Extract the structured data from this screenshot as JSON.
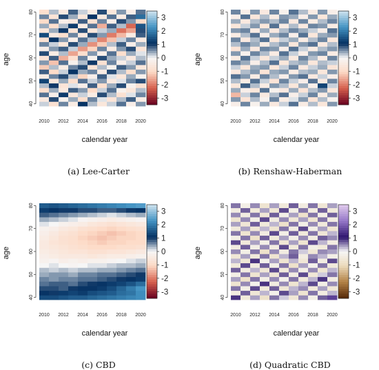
{
  "chart_data": [
    {
      "type": "heatmap",
      "caption": "(a) Lee-Carter",
      "xlabel": "calendar year",
      "ylabel": "age",
      "x": [
        2010,
        2011,
        2012,
        2013,
        2014,
        2015,
        2016,
        2017,
        2018,
        2019,
        2020
      ],
      "y": [
        40,
        42,
        44,
        46,
        48,
        50,
        52,
        54,
        56,
        58,
        60,
        62,
        64,
        66,
        68,
        70,
        72,
        74,
        76,
        78,
        80
      ],
      "x_ticks": [
        2010,
        2012,
        2014,
        2016,
        2018,
        2020
      ],
      "y_ticks": [
        40,
        50,
        60,
        70,
        80
      ],
      "colorbar_ticks": [
        3,
        2,
        1,
        0,
        -1,
        -2,
        -3
      ],
      "zlim": [
        -3.5,
        3.5
      ],
      "palette": "red-white-blue",
      "values": [
        [
          0.2,
          -0.8,
          0.6,
          -0.4,
          1.1,
          0.3,
          -0.6,
          0.2,
          0.7,
          -0.3,
          0.5
        ],
        [
          -0.5,
          0.9,
          -0.2,
          0.4,
          -0.9,
          0.6,
          0.1,
          -0.7,
          0.3,
          0.8,
          -0.4
        ],
        [
          0.7,
          -0.3,
          1.2,
          -0.6,
          0.2,
          -0.4,
          0.9,
          0.3,
          -0.8,
          0.1,
          0.6
        ],
        [
          -0.9,
          0.4,
          -0.5,
          0.8,
          0.5,
          -1.0,
          0.2,
          0.7,
          -0.2,
          -0.6,
          0.3
        ],
        [
          0.3,
          1.0,
          -0.7,
          0.1,
          -0.3,
          0.8,
          -0.9,
          0.4,
          0.9,
          -0.2,
          -0.8
        ],
        [
          1.3,
          -0.6,
          0.4,
          -0.9,
          0.7,
          0.2,
          0.5,
          -0.5,
          0.1,
          0.6,
          0.9
        ],
        [
          -0.4,
          0.6,
          0.9,
          0.3,
          -1.1,
          -0.3,
          0.8,
          0.1,
          -0.6,
          0.4,
          -0.2
        ],
        [
          0.8,
          -1.0,
          0.2,
          1.1,
          0.4,
          0.6,
          -0.4,
          0.9,
          0.3,
          -0.9,
          0.5
        ],
        [
          -1.2,
          0.3,
          -0.4,
          0.6,
          0.9,
          -0.7,
          0.3,
          -0.2,
          0.8,
          0.5,
          -0.6
        ],
        [
          0.5,
          -1.3,
          0.7,
          -0.2,
          0.3,
          1.0,
          -0.8,
          0.6,
          -0.3,
          0.2,
          0.7
        ],
        [
          -0.7,
          0.8,
          -1.5,
          -0.8,
          0.6,
          -0.2,
          0.9,
          0.4,
          0.2,
          -0.5,
          0.3
        ],
        [
          0.9,
          -0.4,
          0.3,
          -1.6,
          -0.9,
          0.5,
          -0.3,
          0.7,
          -0.9,
          0.4,
          0.1
        ],
        [
          -0.3,
          0.5,
          0.8,
          0.2,
          -1.7,
          -1.1,
          0.6,
          -0.4,
          0.5,
          0.9,
          -0.7
        ],
        [
          0.6,
          0.2,
          -0.6,
          0.9,
          0.4,
          -1.8,
          -1.2,
          0.3,
          0.8,
          -0.3,
          0.4
        ],
        [
          -0.8,
          1.1,
          0.5,
          -0.3,
          0.7,
          0.3,
          -1.9,
          -1.3,
          0.2,
          0.6,
          -0.5
        ],
        [
          1.4,
          -0.5,
          -0.9,
          0.6,
          -0.5,
          0.9,
          0.5,
          -2.0,
          -1.4,
          -0.4,
          0.8
        ],
        [
          -0.6,
          0.4,
          1.0,
          -0.7,
          0.9,
          -0.6,
          0.2,
          0.4,
          -2.1,
          -1.6,
          0.9
        ],
        [
          0.4,
          -0.9,
          0.3,
          1.2,
          -0.4,
          0.7,
          -1.5,
          0.8,
          0.3,
          -2.2,
          1.5
        ],
        [
          -1.0,
          0.7,
          -0.3,
          -0.5,
          0.8,
          -0.8,
          0.6,
          -0.3,
          0.9,
          0.5,
          -1.0
        ],
        [
          0.6,
          -0.7,
          0.9,
          0.4,
          -0.6,
          1.1,
          -0.5,
          0.7,
          -0.4,
          0.8,
          1.8
        ],
        [
          -0.9,
          0.3,
          -0.5,
          0.8,
          0.2,
          -0.4,
          0.9,
          -0.6,
          0.5,
          -0.3,
          0.7
        ]
      ]
    },
    {
      "type": "heatmap",
      "caption": "(b) Renshaw-Haberman",
      "xlabel": "calendar year",
      "ylabel": "age",
      "x": [
        2010,
        2011,
        2012,
        2013,
        2014,
        2015,
        2016,
        2017,
        2018,
        2019,
        2020
      ],
      "y": [
        40,
        42,
        44,
        46,
        48,
        50,
        52,
        54,
        56,
        58,
        60,
        62,
        64,
        66,
        68,
        70,
        72,
        74,
        76,
        78,
        80
      ],
      "x_ticks": [
        2010,
        2012,
        2014,
        2016,
        2018,
        2020
      ],
      "y_ticks": [
        40,
        50,
        60,
        70,
        80
      ],
      "colorbar_ticks": [
        3,
        2,
        1,
        0,
        -1,
        -2,
        -3
      ],
      "zlim": [
        -3.5,
        3.5
      ],
      "palette": "red-white-blue",
      "values": [
        [
          -0.3,
          0.6,
          -0.2,
          0.4,
          -0.5,
          0.2,
          0.7,
          -0.4,
          0.3,
          -0.6,
          0.5
        ],
        [
          0.5,
          -0.7,
          0.3,
          -0.2,
          0.6,
          -0.4,
          0.1,
          0.5,
          -0.7,
          0.3,
          -0.2
        ],
        [
          -1.4,
          0.2,
          0.6,
          -0.5,
          0.3,
          0.7,
          -0.3,
          0.2,
          0.6,
          -0.4,
          0.4
        ],
        [
          0.4,
          -0.3,
          -0.6,
          0.7,
          -0.2,
          -0.5,
          0.4,
          -0.7,
          0.3,
          0.5,
          -0.6
        ],
        [
          -0.6,
          0.8,
          0.3,
          -0.4,
          0.5,
          0.3,
          -0.6,
          0.4,
          -0.3,
          1.3,
          0.2
        ],
        [
          0.3,
          -0.4,
          0.7,
          0.2,
          -0.7,
          0.6,
          0.2,
          -0.3,
          0.7,
          -0.5,
          0.6
        ],
        [
          0.7,
          0.5,
          -0.4,
          0.6,
          0.3,
          -0.3,
          0.5,
          0.7,
          -0.5,
          0.2,
          -0.3
        ],
        [
          -0.5,
          0.3,
          0.5,
          -0.7,
          0.4,
          0.5,
          -0.4,
          0.3,
          0.4,
          -0.6,
          0.5
        ],
        [
          0.2,
          -0.6,
          0.4,
          0.5,
          -0.6,
          0.2,
          0.6,
          -0.5,
          0.2,
          0.4,
          -0.7
        ],
        [
          0.6,
          0.4,
          -0.3,
          0.3,
          0.7,
          -0.6,
          0.3,
          0.4,
          -0.6,
          0.3,
          0.2
        ],
        [
          -0.4,
          0.7,
          0.2,
          -0.6,
          0.2,
          0.4,
          -0.5,
          0.6,
          0.3,
          -0.4,
          0.6
        ],
        [
          0.5,
          -0.2,
          0.6,
          0.3,
          -0.4,
          0.7,
          0.2,
          -0.3,
          0.5,
          0.6,
          -0.4
        ],
        [
          -0.7,
          0.4,
          -0.5,
          0.6,
          0.5,
          -0.3,
          0.7,
          0.2,
          -0.4,
          0.3,
          0.5
        ],
        [
          0.3,
          0.6,
          0.4,
          -0.4,
          0.3,
          0.5,
          -0.6,
          0.5,
          0.7,
          -0.5,
          0.3
        ],
        [
          0.6,
          -0.5,
          0.3,
          0.7,
          -0.6,
          0.2,
          0.4,
          -0.4,
          0.3,
          0.6,
          -0.6
        ],
        [
          -0.4,
          0.3,
          0.7,
          -0.3,
          0.4,
          0.6,
          -0.3,
          0.7,
          -0.6,
          0.4,
          0.5
        ],
        [
          0.5,
          0.6,
          -0.4,
          0.4,
          -0.5,
          0.3,
          0.6,
          0.4,
          0.2,
          -0.3,
          0.7
        ],
        [
          -0.6,
          0.2,
          0.5,
          -0.6,
          0.7,
          -0.4,
          0.3,
          -0.5,
          0.6,
          0.5,
          -0.4
        ],
        [
          0.4,
          -0.5,
          0.3,
          0.5,
          0.3,
          0.6,
          -0.5,
          0.6,
          -0.4,
          0.3,
          0.6
        ],
        [
          -0.3,
          0.7,
          -0.6,
          0.3,
          -0.4,
          0.5,
          0.4,
          -0.3,
          0.5,
          -0.6,
          0.4
        ],
        [
          0.6,
          -0.3,
          0.5,
          -0.5,
          0.6,
          -0.2,
          0.7,
          0.3,
          -0.4,
          0.5,
          -0.3
        ]
      ]
    },
    {
      "type": "heatmap",
      "caption": "(c) CBD",
      "xlabel": "calendar year",
      "ylabel": "age",
      "x": [
        2010,
        2011,
        2012,
        2013,
        2014,
        2015,
        2016,
        2017,
        2018,
        2019,
        2020
      ],
      "y": [
        40,
        42,
        44,
        46,
        48,
        50,
        52,
        54,
        56,
        58,
        60,
        62,
        64,
        66,
        68,
        70,
        72,
        74,
        76,
        78,
        80
      ],
      "x_ticks": [
        2010,
        2012,
        2014,
        2016,
        2018,
        2020
      ],
      "y_ticks": [
        40,
        50,
        60,
        70,
        80
      ],
      "colorbar_ticks": [
        3,
        2,
        1,
        0,
        -1,
        -2,
        -3
      ],
      "zlim": [
        -3.5,
        3.5
      ],
      "palette": "red-white-blue",
      "values": [
        [
          1.4,
          1.4,
          1.5,
          1.6,
          1.6,
          1.7,
          1.8,
          1.9,
          2.0,
          2.1,
          2.2
        ],
        [
          1.1,
          1.0,
          1.2,
          1.3,
          1.2,
          1.4,
          1.5,
          1.6,
          1.8,
          1.9,
          2.2
        ],
        [
          0.9,
          0.9,
          0.8,
          1.0,
          1.1,
          1.1,
          1.2,
          1.4,
          1.7,
          2.0,
          2.3
        ],
        [
          0.7,
          0.8,
          0.8,
          0.7,
          0.9,
          1.0,
          1.1,
          1.2,
          1.3,
          1.5,
          1.8
        ],
        [
          0.6,
          0.5,
          0.6,
          0.6,
          0.7,
          0.7,
          0.8,
          0.9,
          1.0,
          1.1,
          1.2
        ],
        [
          0.4,
          0.5,
          0.5,
          0.4,
          0.6,
          0.6,
          0.7,
          0.7,
          0.8,
          0.9,
          1.0
        ],
        [
          0.3,
          0.2,
          0.3,
          0.2,
          0.3,
          0.3,
          0.4,
          0.4,
          0.5,
          0.6,
          0.7
        ],
        [
          0.0,
          0.1,
          0.0,
          -0.1,
          0.0,
          0.1,
          0.1,
          0.2,
          0.3,
          0.3,
          0.4
        ],
        [
          -0.2,
          -0.1,
          -0.3,
          -0.2,
          -0.3,
          -0.2,
          -0.2,
          -0.1,
          0.0,
          0.1,
          0.2
        ],
        [
          -0.3,
          -0.4,
          -0.5,
          -0.5,
          -0.5,
          -0.6,
          -0.5,
          -0.4,
          -0.4,
          -0.3,
          -0.2
        ],
        [
          -0.4,
          -0.5,
          -0.6,
          -0.7,
          -0.7,
          -0.8,
          -0.8,
          -0.7,
          -0.7,
          -0.6,
          -0.5
        ],
        [
          -0.5,
          -0.6,
          -0.7,
          -0.8,
          -0.9,
          -1.0,
          -1.0,
          -1.0,
          -0.9,
          -0.9,
          -0.8
        ],
        [
          -0.5,
          -0.7,
          -0.8,
          -0.9,
          -1.0,
          -1.1,
          -1.2,
          -1.1,
          -1.1,
          -1.0,
          -1.0
        ],
        [
          -0.4,
          -0.6,
          -0.8,
          -0.9,
          -1.1,
          -1.2,
          -1.3,
          -1.2,
          -1.1,
          -1.1,
          -1.0
        ],
        [
          -0.3,
          -0.5,
          -0.7,
          -0.8,
          -1.0,
          -1.1,
          -1.2,
          -1.3,
          -1.2,
          -1.1,
          -1.0
        ],
        [
          -0.2,
          -0.3,
          -0.5,
          -0.6,
          -0.8,
          -0.9,
          -1.0,
          -1.1,
          -1.0,
          -0.9,
          -0.8
        ],
        [
          0.1,
          0.0,
          -0.2,
          -0.3,
          -0.4,
          -0.6,
          -0.7,
          -0.8,
          -0.7,
          -0.6,
          -0.5
        ],
        [
          0.4,
          0.3,
          0.2,
          0.1,
          -0.1,
          -0.2,
          -0.3,
          -0.4,
          -0.3,
          -0.2,
          -0.1
        ],
        [
          0.8,
          0.7,
          0.6,
          0.5,
          0.4,
          0.3,
          0.2,
          0.1,
          0.2,
          0.3,
          0.4
        ],
        [
          1.2,
          1.1,
          1.0,
          1.0,
          0.9,
          0.9,
          0.8,
          0.8,
          0.9,
          1.0,
          1.1
        ],
        [
          1.6,
          1.5,
          1.6,
          1.7,
          1.8,
          1.9,
          2.0,
          2.1,
          2.2,
          2.3,
          2.4
        ]
      ]
    },
    {
      "type": "heatmap",
      "caption": "(d) Quadratic CBD",
      "xlabel": "calendar year",
      "ylabel": "age",
      "x": [
        2010,
        2011,
        2012,
        2013,
        2014,
        2015,
        2016,
        2017,
        2018,
        2019,
        2020
      ],
      "y": [
        40,
        42,
        44,
        46,
        48,
        50,
        52,
        54,
        56,
        58,
        60,
        62,
        64,
        66,
        68,
        70,
        72,
        74,
        76,
        78,
        80
      ],
      "x_ticks": [
        2010,
        2012,
        2014,
        2016,
        2018,
        2020
      ],
      "y_ticks": [
        40,
        50,
        60,
        70,
        80
      ],
      "colorbar_ticks": [
        3,
        2,
        1,
        0,
        -1,
        -2,
        -3
      ],
      "zlim": [
        -3.5,
        3.5
      ],
      "palette": "brown-white-purple",
      "values": [
        [
          0.9,
          -0.5,
          0.4,
          -0.8,
          0.6,
          0.2,
          -0.6,
          0.5,
          -0.3,
          0.7,
          1.6
        ],
        [
          -0.4,
          0.7,
          -0.6,
          0.3,
          -0.2,
          0.8,
          0.4,
          -0.7,
          0.6,
          -0.4,
          0.3
        ],
        [
          0.6,
          -0.3,
          0.8,
          -0.5,
          0.7,
          -0.6,
          0.3,
          0.5,
          -0.5,
          0.4,
          -0.6
        ],
        [
          -0.7,
          0.5,
          -0.2,
          0.9,
          -0.4,
          0.5,
          -0.7,
          0.3,
          0.8,
          -0.3,
          0.5
        ],
        [
          0.4,
          -0.8,
          0.6,
          -0.3,
          0.5,
          -0.2,
          0.6,
          -0.5,
          0.3,
          0.9,
          -0.4
        ],
        [
          -0.3,
          0.6,
          -0.7,
          0.4,
          -0.6,
          0.7,
          -0.4,
          0.8,
          -0.6,
          0.2,
          0.6
        ],
        [
          0.7,
          -0.4,
          0.3,
          -0.6,
          0.8,
          -0.5,
          0.5,
          -0.3,
          0.5,
          -0.7,
          0.3
        ],
        [
          -0.5,
          0.8,
          -0.4,
          0.7,
          -0.3,
          0.6,
          -0.8,
          0.4,
          -0.2,
          0.6,
          -0.5
        ],
        [
          0.3,
          -0.6,
          0.9,
          -0.2,
          0.4,
          -0.7,
          0.3,
          -0.6,
          0.7,
          -0.4,
          0.8
        ],
        [
          -0.6,
          0.4,
          -0.5,
          0.6,
          -0.7,
          0.3,
          0.7,
          -0.4,
          0.5,
          0.3,
          -0.3
        ],
        [
          0.5,
          -0.3,
          0.6,
          -0.8,
          0.5,
          -0.4,
          0.6,
          0.2,
          -0.6,
          0.5,
          0.4
        ],
        [
          -0.4,
          0.7,
          -0.3,
          0.5,
          -0.4,
          0.8,
          -0.5,
          0.6,
          -0.3,
          -0.5,
          0.6
        ],
        [
          0.8,
          -0.5,
          0.4,
          -0.3,
          0.6,
          -0.6,
          0.4,
          -0.7,
          0.8,
          0.3,
          -0.4
        ],
        [
          -0.3,
          0.6,
          -0.8,
          0.7,
          -0.5,
          0.4,
          -0.3,
          0.5,
          -0.4,
          0.7,
          0.5
        ],
        [
          0.6,
          -0.7,
          0.5,
          -0.4,
          0.8,
          -0.3,
          0.7,
          -0.5,
          0.6,
          -0.6,
          0.3
        ],
        [
          -0.5,
          0.4,
          -0.6,
          0.3,
          -0.7,
          0.6,
          -0.4,
          0.8,
          -0.3,
          0.4,
          -0.7
        ],
        [
          0.4,
          -0.6,
          0.7,
          -0.5,
          0.3,
          -0.8,
          0.6,
          -0.3,
          0.5,
          -0.5,
          0.6
        ],
        [
          -0.7,
          0.5,
          -0.3,
          0.8,
          -0.4,
          0.5,
          -0.6,
          0.4,
          -0.7,
          0.6,
          -0.4
        ],
        [
          0.5,
          -0.4,
          0.6,
          -0.6,
          0.7,
          -0.3,
          0.4,
          -0.8,
          0.6,
          -0.3,
          0.7
        ],
        [
          -0.4,
          0.7,
          -0.5,
          0.4,
          -0.6,
          0.8,
          -0.3,
          0.6,
          -0.4,
          0.7,
          -0.5
        ],
        [
          0.6,
          -0.3,
          0.5,
          -0.7,
          0.4,
          -0.5,
          0.7,
          -0.4,
          0.6,
          -0.6,
          0.4
        ]
      ]
    }
  ]
}
